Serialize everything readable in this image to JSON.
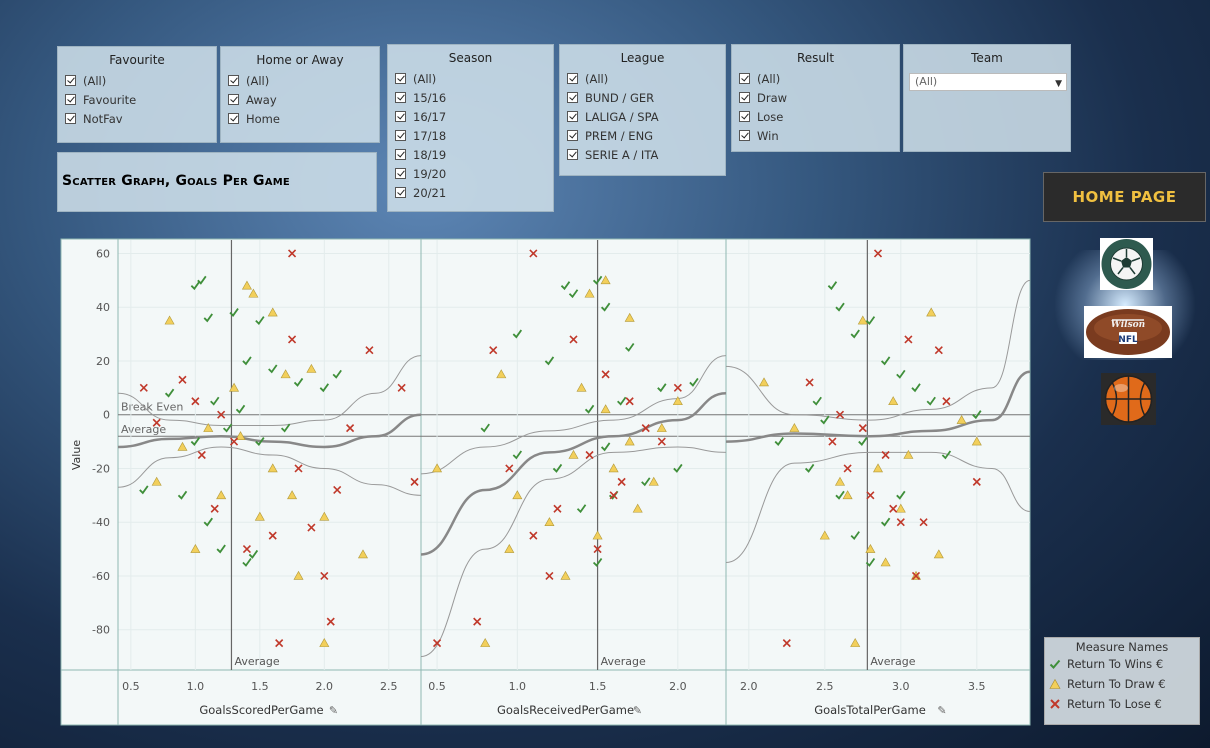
{
  "filters": {
    "favourite": {
      "title": "Favourite",
      "options": [
        "(All)",
        "Favourite",
        "NotFav"
      ]
    },
    "home_away": {
      "title": "Home or Away",
      "options": [
        "(All)",
        "Away",
        "Home"
      ]
    },
    "season": {
      "title": "Season",
      "options": [
        "(All)",
        "15/16",
        "16/17",
        "17/18",
        "18/19",
        "19/20",
        "20/21"
      ]
    },
    "league": {
      "title": "League",
      "options": [
        "(All)",
        "BUND / GER",
        "LALIGA / SPA",
        "PREM / ENG",
        "SERIE A / ITA"
      ]
    },
    "result": {
      "title": "Result",
      "options": [
        "(All)",
        "Draw",
        "Lose",
        "Win"
      ]
    },
    "team": {
      "title": "Team",
      "value": "(All)"
    }
  },
  "page_title": "Scatter Graph, Goals Per Game",
  "home_button": "HOME PAGE",
  "icons": [
    "soccer-ball-icon",
    "nfl-football-icon",
    "basketball-icon"
  ],
  "legend": {
    "title": "Measure Names",
    "items": [
      {
        "label": "Return To Wins €",
        "marker": "check",
        "color": "#3f8f3a"
      },
      {
        "label": "Return To Draw €",
        "marker": "triangle",
        "color": "#f2cf5b"
      },
      {
        "label": "Return To Lose €",
        "marker": "cross",
        "color": "#c0392b"
      }
    ]
  },
  "chart_data": {
    "type": "scatter",
    "ylabel": "Value",
    "ylim": [
      -95,
      65
    ],
    "yticks": [
      60,
      40,
      20,
      0,
      -20,
      -40,
      -60,
      -80
    ],
    "reference_lines": {
      "break_even": {
        "label": "Break Even",
        "value": 0
      },
      "average": {
        "label": "Average",
        "value": -8
      }
    },
    "panels": [
      {
        "xlabel": "GoalsScoredPerGame",
        "xlim": [
          0.4,
          2.75
        ],
        "xticks": [
          0.5,
          1.0,
          1.5,
          2.0,
          2.5
        ],
        "x_average": 1.28,
        "x_average_label": "Average",
        "trend": [
          [
            0.4,
            -12
          ],
          [
            0.8,
            -9
          ],
          [
            1.2,
            -8
          ],
          [
            1.6,
            -10
          ],
          [
            2.0,
            -12
          ],
          [
            2.4,
            -8
          ],
          [
            2.75,
            0
          ]
        ],
        "band_upper": [
          [
            0.4,
            8
          ],
          [
            0.8,
            -2
          ],
          [
            1.2,
            -4
          ],
          [
            1.6,
            -4
          ],
          [
            2.0,
            -2
          ],
          [
            2.4,
            8
          ],
          [
            2.75,
            22
          ]
        ],
        "band_lower": [
          [
            0.4,
            -27
          ],
          [
            0.8,
            -16
          ],
          [
            1.2,
            -12
          ],
          [
            1.6,
            -15
          ],
          [
            2.0,
            -20
          ],
          [
            2.4,
            -26
          ],
          [
            2.75,
            -30
          ]
        ]
      },
      {
        "xlabel": "GoalsReceivedPerGame",
        "xlim": [
          0.4,
          2.3
        ],
        "xticks": [
          0.5,
          1.0,
          1.5,
          2.0
        ],
        "x_average": 1.5,
        "x_average_label": "Average",
        "trend": [
          [
            0.4,
            -52
          ],
          [
            0.8,
            -28
          ],
          [
            1.2,
            -14
          ],
          [
            1.6,
            -8
          ],
          [
            2.0,
            -2
          ],
          [
            2.3,
            8
          ]
        ],
        "band_upper": [
          [
            0.4,
            -22
          ],
          [
            0.8,
            -12
          ],
          [
            1.2,
            -6
          ],
          [
            1.6,
            -2
          ],
          [
            2.0,
            6
          ],
          [
            2.3,
            22
          ]
        ],
        "band_lower": [
          [
            0.4,
            -90
          ],
          [
            0.8,
            -50
          ],
          [
            1.2,
            -24
          ],
          [
            1.6,
            -14
          ],
          [
            2.0,
            -12
          ],
          [
            2.3,
            -14
          ]
        ]
      },
      {
        "xlabel": "GoalsTotalPerGame",
        "xlim": [
          1.85,
          3.85
        ],
        "xticks": [
          2.0,
          2.5,
          3.0,
          3.5
        ],
        "x_average": 2.78,
        "x_average_label": "Average",
        "trend": [
          [
            1.85,
            -10
          ],
          [
            2.3,
            -7
          ],
          [
            2.8,
            -8
          ],
          [
            3.2,
            -6
          ],
          [
            3.6,
            -2
          ],
          [
            3.85,
            16
          ]
        ],
        "band_upper": [
          [
            1.85,
            18
          ],
          [
            2.3,
            0
          ],
          [
            2.8,
            -2
          ],
          [
            3.2,
            2
          ],
          [
            3.6,
            10
          ],
          [
            3.85,
            50
          ]
        ],
        "band_lower": [
          [
            1.85,
            -55
          ],
          [
            2.3,
            -18
          ],
          [
            2.8,
            -14
          ],
          [
            3.2,
            -14
          ],
          [
            3.6,
            -20
          ],
          [
            3.85,
            -36
          ]
        ]
      }
    ],
    "series": [
      {
        "name": "Return To Wins €",
        "points": [
          [
            [
              1.0,
              48
            ],
            [
              1.05,
              50
            ],
            [
              1.1,
              36
            ],
            [
              1.3,
              38
            ],
            [
              1.4,
              20
            ],
            [
              1.5,
              35
            ],
            [
              1.6,
              17
            ],
            [
              1.8,
              12
            ],
            [
              2.0,
              10
            ],
            [
              0.6,
              -28
            ],
            [
              0.9,
              -30
            ],
            [
              1.1,
              -40
            ],
            [
              1.2,
              -50
            ],
            [
              1.4,
              -55
            ],
            [
              1.45,
              -52
            ],
            [
              1.0,
              -10
            ],
            [
              1.15,
              5
            ],
            [
              1.25,
              -5
            ],
            [
              0.8,
              8
            ],
            [
              1.35,
              2
            ],
            [
              1.5,
              -10
            ],
            [
              1.7,
              -5
            ],
            [
              2.1,
              15
            ]
          ],
          [
            [
              1.3,
              48
            ],
            [
              1.35,
              45
            ],
            [
              1.5,
              50
            ],
            [
              1.55,
              40
            ],
            [
              1.0,
              30
            ],
            [
              1.2,
              20
            ],
            [
              1.7,
              25
            ],
            [
              1.9,
              10
            ],
            [
              2.1,
              12
            ],
            [
              0.8,
              -5
            ],
            [
              1.0,
              -15
            ],
            [
              1.25,
              -20
            ],
            [
              1.4,
              -35
            ],
            [
              1.5,
              -55
            ],
            [
              1.6,
              -30
            ],
            [
              1.8,
              -25
            ],
            [
              2.0,
              -20
            ],
            [
              1.45,
              2
            ],
            [
              1.55,
              -12
            ],
            [
              1.65,
              5
            ]
          ],
          [
            [
              2.5,
              -2
            ],
            [
              2.55,
              48
            ],
            [
              2.6,
              40
            ],
            [
              2.7,
              30
            ],
            [
              2.8,
              35
            ],
            [
              2.9,
              20
            ],
            [
              3.0,
              15
            ],
            [
              3.1,
              10
            ],
            [
              3.2,
              5
            ],
            [
              2.4,
              -20
            ],
            [
              2.6,
              -30
            ],
            [
              2.7,
              -45
            ],
            [
              2.8,
              -55
            ],
            [
              2.9,
              -40
            ],
            [
              3.0,
              -30
            ],
            [
              2.2,
              -10
            ],
            [
              2.45,
              5
            ],
            [
              3.3,
              -15
            ],
            [
              3.5,
              0
            ],
            [
              2.75,
              -10
            ]
          ]
        ]
      },
      {
        "name": "Return To Draw €",
        "points": [
          [
            [
              1.0,
              -50
            ],
            [
              1.4,
              48
            ],
            [
              1.45,
              45
            ],
            [
              1.6,
              38
            ],
            [
              1.3,
              10
            ],
            [
              1.7,
              15
            ],
            [
              1.9,
              17
            ],
            [
              2.0,
              -85
            ],
            [
              2.3,
              -52
            ],
            [
              1.8,
              -60
            ],
            [
              1.2,
              -30
            ],
            [
              1.5,
              -38
            ],
            [
              1.6,
              -20
            ],
            [
              0.7,
              -25
            ],
            [
              0.9,
              -12
            ],
            [
              1.1,
              -5
            ],
            [
              1.35,
              -8
            ],
            [
              2.0,
              -38
            ],
            [
              0.8,
              35
            ],
            [
              1.75,
              -30
            ]
          ],
          [
            [
              1.45,
              45
            ],
            [
              1.55,
              50
            ],
            [
              1.7,
              36
            ],
            [
              0.5,
              -20
            ],
            [
              0.8,
              -85
            ],
            [
              0.95,
              -50
            ],
            [
              1.0,
              -30
            ],
            [
              1.2,
              -40
            ],
            [
              1.3,
              -60
            ],
            [
              1.5,
              -45
            ],
            [
              1.6,
              -20
            ],
            [
              1.75,
              -35
            ],
            [
              1.9,
              -5
            ],
            [
              2.0,
              5
            ],
            [
              1.4,
              10
            ],
            [
              1.55,
              2
            ],
            [
              1.35,
              -15
            ],
            [
              0.9,
              15
            ],
            [
              1.85,
              -25
            ],
            [
              1.7,
              -10
            ]
          ],
          [
            [
              2.1,
              12
            ],
            [
              2.7,
              -85
            ],
            [
              2.75,
              35
            ],
            [
              2.8,
              -50
            ],
            [
              2.9,
              -55
            ],
            [
              3.0,
              -35
            ],
            [
              3.1,
              -60
            ],
            [
              3.2,
              38
            ],
            [
              3.25,
              -52
            ],
            [
              3.5,
              -10
            ],
            [
              2.6,
              -25
            ],
            [
              2.85,
              -20
            ],
            [
              2.95,
              5
            ],
            [
              3.05,
              -15
            ],
            [
              2.5,
              -45
            ],
            [
              2.65,
              -30
            ],
            [
              2.3,
              -5
            ],
            [
              3.4,
              -2
            ]
          ]
        ]
      },
      {
        "name": "Return To Lose €",
        "points": [
          [
            [
              1.75,
              60
            ],
            [
              0.6,
              10
            ],
            [
              0.7,
              -3
            ],
            [
              0.9,
              13
            ],
            [
              1.0,
              5
            ],
            [
              1.05,
              -15
            ],
            [
              1.15,
              -35
            ],
            [
              1.2,
              0
            ],
            [
              1.3,
              -10
            ],
            [
              1.4,
              -50
            ],
            [
              1.6,
              -45
            ],
            [
              1.65,
              -85
            ],
            [
              1.8,
              -20
            ],
            [
              1.9,
              -42
            ],
            [
              2.0,
              -60
            ],
            [
              2.05,
              -77
            ],
            [
              2.1,
              -28
            ],
            [
              2.35,
              24
            ],
            [
              2.6,
              10
            ],
            [
              2.7,
              -25
            ],
            [
              2.2,
              -5
            ],
            [
              1.75,
              28
            ]
          ],
          [
            [
              1.1,
              60
            ],
            [
              0.5,
              -85
            ],
            [
              0.75,
              -77
            ],
            [
              0.85,
              24
            ],
            [
              0.95,
              -20
            ],
            [
              1.1,
              -45
            ],
            [
              1.2,
              -60
            ],
            [
              1.35,
              28
            ],
            [
              1.45,
              -15
            ],
            [
              1.5,
              -50
            ],
            [
              1.6,
              -30
            ],
            [
              1.7,
              5
            ],
            [
              1.8,
              -5
            ],
            [
              1.9,
              -10
            ],
            [
              2.0,
              10
            ],
            [
              1.25,
              -35
            ],
            [
              1.55,
              15
            ],
            [
              1.65,
              -25
            ]
          ],
          [
            [
              2.85,
              60
            ],
            [
              2.25,
              -85
            ],
            [
              2.4,
              12
            ],
            [
              2.6,
              0
            ],
            [
              2.75,
              -5
            ],
            [
              2.8,
              -30
            ],
            [
              2.9,
              -15
            ],
            [
              3.0,
              -40
            ],
            [
              3.05,
              28
            ],
            [
              3.1,
              -60
            ],
            [
              3.15,
              -40
            ],
            [
              3.25,
              24
            ],
            [
              3.5,
              -25
            ],
            [
              2.95,
              -35
            ],
            [
              2.65,
              -20
            ],
            [
              3.3,
              5
            ],
            [
              2.55,
              -10
            ]
          ]
        ]
      }
    ]
  }
}
